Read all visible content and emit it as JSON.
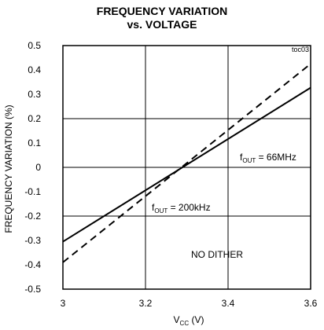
{
  "chart_data": {
    "type": "line",
    "title_line1": "FREQUENCY VARIATION",
    "title_line2": "vs. VOLTAGE",
    "tag": "toc03",
    "xlabel_main": "V",
    "xlabel_sub": "CC",
    "xlabel_unit": " (V)",
    "ylabel": "FREQUENCY VARIATION (%)",
    "xlim": [
      3.0,
      3.6
    ],
    "ylim": [
      -0.5,
      0.5
    ],
    "x_ticks": [
      "3",
      "3.2",
      "3.4",
      "3.6"
    ],
    "y_ticks": [
      "0.5",
      "0.4",
      "0.3",
      "0.2",
      "0.1",
      "0",
      "-0.1",
      "-0.2",
      "-0.3",
      "-0.4",
      "-0.5"
    ],
    "grid": true,
    "series": [
      {
        "label_main": "f",
        "label_sub": "OUT",
        "label_value": " = 66MHz",
        "style": "solid",
        "x": [
          3.0,
          3.6
        ],
        "y": [
          -0.305,
          0.327
        ]
      },
      {
        "label_main": "f",
        "label_sub": "OUT",
        "label_value": " = 200kHz",
        "style": "dashed",
        "x": [
          3.0,
          3.6
        ],
        "y": [
          -0.39,
          0.425
        ]
      }
    ],
    "annotation": "NO DITHER"
  }
}
